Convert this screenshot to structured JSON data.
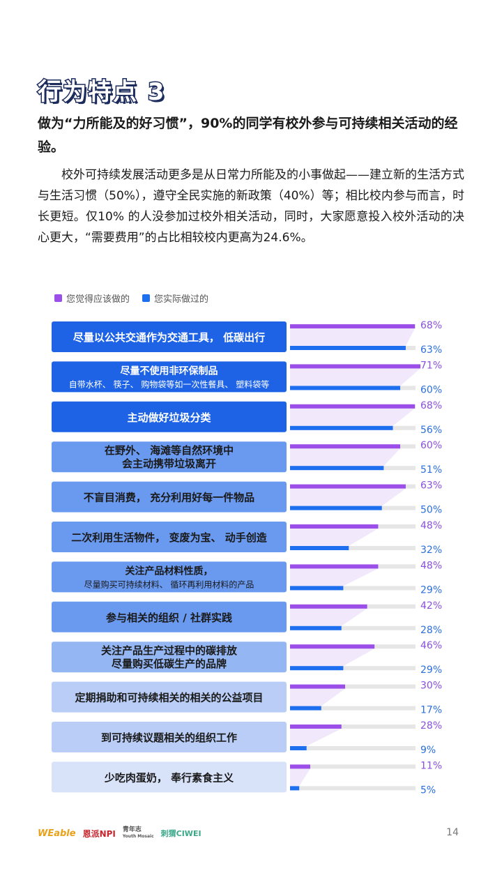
{
  "title": "行为特点 3",
  "subtitle": "做为“力所能及的好习惯”，90%的同学有校外参与可持续相关活动的经验。",
  "body": "校外可持续发展活动更多是从日常力所能及的小事做起——建立新的生活方式与生活习惯（50%），遵守全民实施的新政策（40%）等；相比校内参与而言，时长更短。仅10%  的人没参加过校外相关活动，同时，大家愿意投入校外活动的决心更大，“需要费用”的占比相较校内更高为24.6%。",
  "colors": {
    "series1": "#9b4fe8",
    "series2": "#1e6ef0",
    "track": "#e6e6e6",
    "label1": "#8a4fe0",
    "label2": "#2a6fe0"
  },
  "chart_data": {
    "type": "bar",
    "legend_position": "top-left",
    "categories": [
      [
        "尽量以公共交通作为交通工具， 低碳出行"
      ],
      [
        "尽量不使用非环保制品",
        "自带水杯、 筷子、 购物袋等如一次性餐具、 塑料袋等"
      ],
      [
        "主动做好垃圾分类"
      ],
      [
        "在野外、 海滩等自然环境中",
        "会主动携带垃圾离开"
      ],
      [
        "不盲目消费， 充分利用好每一件物品"
      ],
      [
        "二次利用生活物件， 变废为宝、 动手创造"
      ],
      [
        "关注产品材料性质，",
        "尽量购买可持续材料、 循环再利用材料的产品"
      ],
      [
        "参与相关的组织 / 社群实践"
      ],
      [
        "关注产品生产过程中的碳排放",
        "尽量购买低碳生产的品牌"
      ],
      [
        "定期捐助和可持续相关的相关的公益项目"
      ],
      [
        "到可持续议题相关的组织工作"
      ],
      [
        "少吃肉蛋奶， 奉行素食主义"
      ]
    ],
    "series": [
      {
        "name": "您觉得应该做的",
        "values": [
          68,
          71,
          68,
          60,
          63,
          48,
          48,
          42,
          46,
          30,
          28,
          11
        ],
        "labels": [
          "68%",
          "71%",
          "68%",
          "60%",
          "63%",
          "48%",
          "48%",
          "42%",
          "46%",
          "30%",
          "28%",
          "11%"
        ]
      },
      {
        "name": "您实际做过的",
        "values": [
          63,
          60,
          56,
          51,
          50,
          32,
          29,
          28,
          29,
          17,
          9,
          5
        ],
        "labels": [
          "63%",
          "60%",
          "56%",
          "51%",
          "50%",
          "32%",
          "29%",
          "28%",
          "29%",
          "17%",
          "9%",
          "5%"
        ]
      }
    ],
    "xlim": [
      0,
      100
    ],
    "box_colors": [
      "#1e63e6",
      "#1e63e6",
      "#1e63e6",
      "#6a9af0",
      "#6a9af0",
      "#6a9af0",
      "#6a9af0",
      "#6a9af0",
      "#94b6f3",
      "#b9cdf6",
      "#b9cdf6",
      "#d8e2f9"
    ],
    "box_text_colors": [
      "#ffffff",
      "#ffffff",
      "#ffffff",
      "#1a1a1a",
      "#1a1a1a",
      "#1a1a1a",
      "#1a1a1a",
      "#1a1a1a",
      "#1a1a1a",
      "#1a1a1a",
      "#1a1a1a",
      "#1a1a1a"
    ]
  },
  "footer": {
    "logo1": "WEable",
    "logo2": "恩派NPI",
    "logo3a": "青年志",
    "logo3b": "Youth Mosaic",
    "logo4": "刺猬CIWEI",
    "page": "14"
  }
}
